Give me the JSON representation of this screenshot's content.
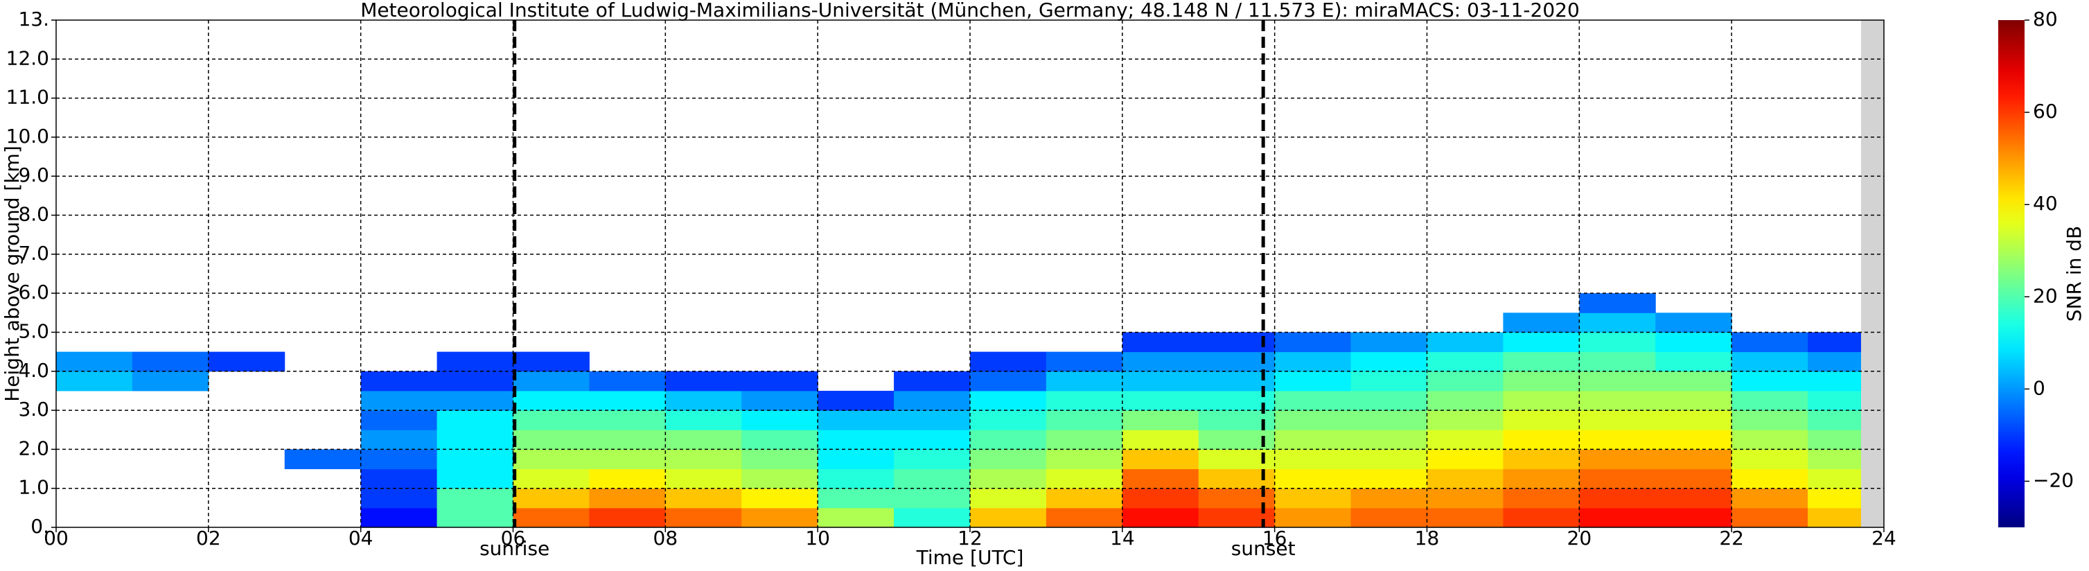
{
  "chart_data": {
    "type": "heatmap",
    "title": "Meteorological Institute of Ludwig-Maximilians-Universität (München, Germany; 48.148 N / 11.573 E):    miraMACS: 03-11-2020",
    "x_label": "Time [UTC]",
    "y_label": "Height above ground [km]",
    "colorbar_label": "SNR in dB",
    "colormap": "jet",
    "clim": [
      -30,
      80
    ],
    "cticks": [
      {
        "value": -20,
        "label": "−20"
      },
      0,
      20,
      40,
      60,
      80
    ],
    "xlim": [
      0,
      24
    ],
    "ylim": [
      0,
      13
    ],
    "grid": true,
    "xticks": [
      {
        "value": 0,
        "label": "00"
      },
      {
        "value": 2,
        "label": "02"
      },
      {
        "value": 4,
        "label": "04"
      },
      {
        "value": 6,
        "label": "06"
      },
      {
        "value": 8,
        "label": "08"
      },
      10,
      12,
      14,
      16,
      18,
      20,
      22,
      24
    ],
    "yticks": [
      {
        "value": 0,
        "label": "0."
      },
      {
        "value": 1,
        "label": "1.0"
      },
      {
        "value": 2,
        "label": "2.0"
      },
      {
        "value": 3,
        "label": "3.0"
      },
      {
        "value": 4,
        "label": "4.0"
      },
      {
        "value": 5,
        "label": "5.0"
      },
      {
        "value": 6,
        "label": "6.0"
      },
      {
        "value": 7,
        "label": "7.0"
      },
      {
        "value": 8,
        "label": "8.0"
      },
      {
        "value": 9,
        "label": "9.0"
      },
      {
        "value": 10,
        "label": "10.0"
      },
      {
        "value": 11,
        "label": "11.0"
      },
      {
        "value": 12,
        "label": "12.0"
      },
      {
        "value": 13,
        "label": "13."
      }
    ],
    "annotations": [
      {
        "text": "sunrise",
        "x": 6.02
      },
      {
        "text": "sunset",
        "x": 15.85
      }
    ],
    "x_bins": [
      0,
      1,
      2,
      3,
      4,
      5,
      6,
      7,
      8,
      9,
      10,
      11,
      12,
      13,
      14,
      15,
      16,
      17,
      18,
      19,
      20,
      21,
      22,
      23,
      24
    ],
    "y_bins": [
      0,
      0.5,
      1,
      1.5,
      2,
      2.5,
      3,
      3.5,
      4,
      4.5,
      5,
      5.5,
      6
    ],
    "values": [
      [
        null,
        null,
        null,
        null,
        null,
        null,
        null,
        5,
        0,
        null,
        null,
        null
      ],
      [
        null,
        null,
        null,
        null,
        null,
        null,
        null,
        0,
        -5,
        null,
        null,
        null
      ],
      [
        null,
        null,
        null,
        null,
        null,
        null,
        null,
        null,
        -10,
        null,
        null,
        null
      ],
      [
        null,
        null,
        null,
        -5,
        null,
        null,
        null,
        null,
        null,
        null,
        null,
        null
      ],
      [
        -15,
        -10,
        -10,
        -5,
        0,
        -5,
        0,
        -10,
        null,
        null,
        null,
        null
      ],
      [
        20,
        20,
        10,
        10,
        10,
        10,
        0,
        -10,
        -10,
        null,
        null,
        null
      ],
      [
        55,
        45,
        35,
        30,
        25,
        20,
        10,
        0,
        -10,
        null,
        null,
        null
      ],
      [
        60,
        50,
        40,
        30,
        25,
        20,
        10,
        -5,
        null,
        null,
        null,
        null
      ],
      [
        55,
        45,
        35,
        30,
        25,
        15,
        5,
        -10,
        null,
        null,
        null,
        null
      ],
      [
        50,
        40,
        30,
        25,
        20,
        10,
        0,
        -10,
        null,
        null,
        null,
        null
      ],
      [
        30,
        20,
        15,
        10,
        10,
        5,
        -10,
        null,
        null,
        null,
        null,
        null
      ],
      [
        15,
        20,
        20,
        15,
        10,
        5,
        0,
        -10,
        null,
        null,
        null,
        null
      ],
      [
        45,
        35,
        30,
        25,
        20,
        15,
        10,
        -5,
        -10,
        null,
        null,
        null
      ],
      [
        55,
        45,
        35,
        30,
        25,
        20,
        15,
        5,
        -5,
        null,
        null,
        null
      ],
      [
        65,
        60,
        55,
        45,
        35,
        25,
        15,
        5,
        0,
        -10,
        null,
        null
      ],
      [
        60,
        55,
        45,
        35,
        25,
        20,
        15,
        5,
        0,
        -10,
        null,
        null
      ],
      [
        50,
        45,
        40,
        35,
        30,
        25,
        20,
        10,
        5,
        -5,
        null,
        null
      ],
      [
        55,
        50,
        40,
        35,
        30,
        25,
        20,
        15,
        10,
        0,
        null,
        null
      ],
      [
        55,
        50,
        45,
        40,
        35,
        30,
        25,
        20,
        15,
        5,
        null,
        null
      ],
      [
        60,
        55,
        50,
        45,
        40,
        35,
        30,
        25,
        20,
        10,
        0,
        null
      ],
      [
        65,
        60,
        55,
        50,
        40,
        35,
        30,
        25,
        20,
        15,
        5,
        -5
      ],
      [
        65,
        60,
        55,
        50,
        40,
        35,
        30,
        25,
        15,
        10,
        0,
        null
      ],
      [
        55,
        50,
        40,
        35,
        30,
        25,
        20,
        10,
        5,
        -5,
        null,
        null
      ],
      [
        45,
        40,
        35,
        30,
        25,
        20,
        15,
        10,
        0,
        -10,
        null,
        null
      ]
    ]
  }
}
